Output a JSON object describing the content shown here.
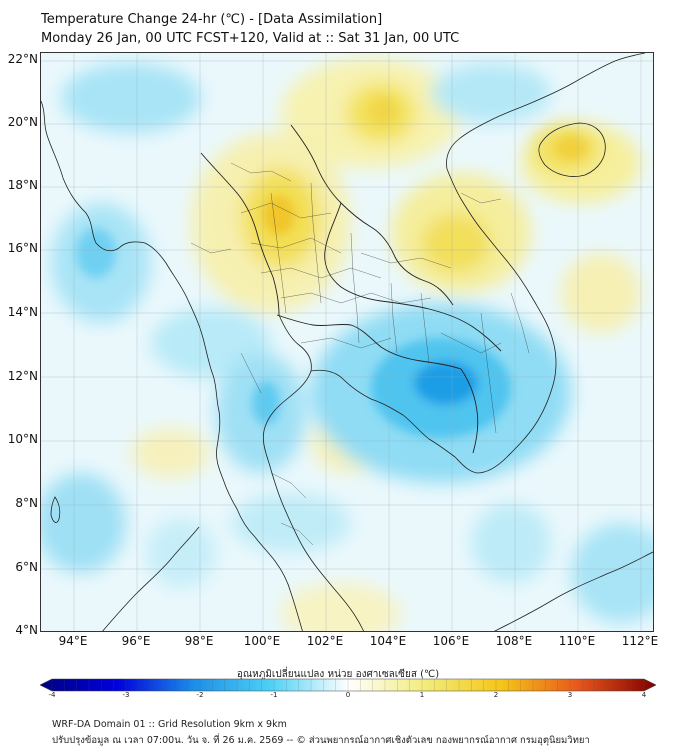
{
  "header": {
    "title_line1": "Temperature Change 24-hr (℃) - [Data Assimilation]",
    "title_line2": "Monday 26 Jan, 00 UTC FCST+120, Valid at :: Sat 31 Jan, 00 UTC"
  },
  "map": {
    "variable": "24-hour temperature change",
    "unit": "°C",
    "lat_labels": [
      "22°N",
      "20°N",
      "18°N",
      "16°N",
      "14°N",
      "12°N",
      "10°N",
      "8°N",
      "6°N",
      "4°N"
    ],
    "lon_labels": [
      "94°E",
      "96°E",
      "98°E",
      "100°E",
      "102°E",
      "104°E",
      "106°E",
      "108°E",
      "110°E",
      "112°E"
    ]
  },
  "colorbar": {
    "label": "อุณหภูมิเปลี่ยนแปลง หน่วย องศาเซลเซียส (℃)",
    "min": -4,
    "max": 4,
    "ticks": [
      "-4",
      "-3",
      "-2",
      "-1",
      "0",
      "1",
      "2",
      "3",
      "4"
    ],
    "colors": {
      "neg4": "#000080",
      "neg3": "#0000dd",
      "neg2": "#1c8fe8",
      "neg1": "#4fd1f5",
      "zero": "#ffffff",
      "pos1": "#f2ec7a",
      "pos2": "#f5c518",
      "pos3": "#e8551b",
      "pos4": "#800000"
    }
  },
  "footer": {
    "line1": "WRF-DA Domain 01 :: Grid Resolution 9km x 9km",
    "line2": "ปรับปรุงข้อมูล ณ เวลา 07:00น. วัน จ. ที่ 26 ม.ค. 2569 -- © ส่วนพยากรณ์อากาศเชิงตัวเลข กองพยากรณ์อากาศ กรมอุตุนิยมวิทยา"
  }
}
